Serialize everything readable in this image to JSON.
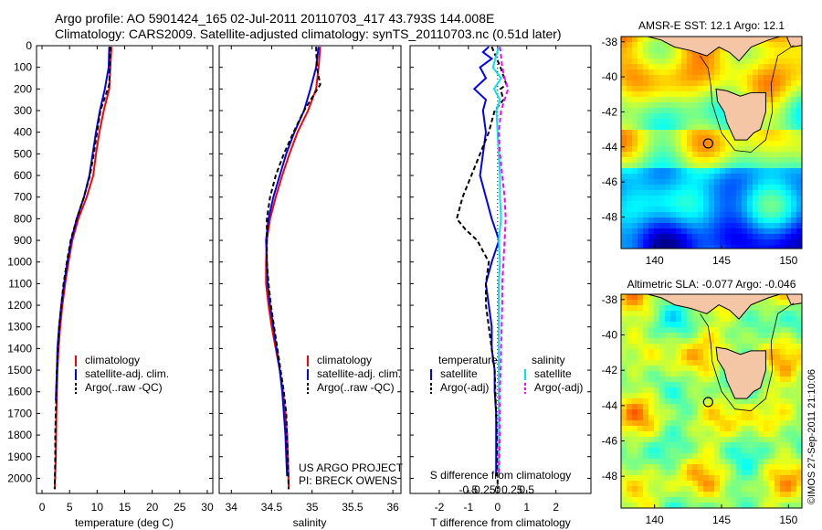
{
  "header": {
    "line1": "Argo profile: AO 5901424_165 02-Jul-2011 20110703_417 43.793S 144.008E",
    "line2": "Climatology: CARS2009. Satellite-adjusted climatology: synTS_20110703.nc (0.51d later)"
  },
  "colors": {
    "climatology": "#ff0000",
    "satellite": "#0000ff",
    "argo": "#000000",
    "salinity_satellite": "#00e5ee",
    "salinity_argo": "#ff00ff",
    "land": "#f5c6a6"
  },
  "credit": "©IMOS 27-Sep-2011 21:10:06",
  "chart_data": [
    {
      "id": "temperature",
      "type": "line",
      "xlabel": "temperature (deg C)",
      "ylabel": "",
      "xlim": [
        -1,
        31
      ],
      "ylim": [
        2070,
        0
      ],
      "xticks": [
        0,
        5,
        10,
        15,
        20,
        25,
        30
      ],
      "yticks": [
        0,
        100,
        200,
        300,
        400,
        500,
        600,
        700,
        800,
        900,
        1000,
        1100,
        1200,
        1300,
        1400,
        1500,
        1600,
        1700,
        1800,
        1900,
        2000
      ],
      "legend": [
        "climatology",
        "satellite-adj. clim.",
        "Argo(..raw -QC)"
      ],
      "series": [
        {
          "name": "climatology",
          "color": "#ff0000",
          "dash": "",
          "depth": [
            5,
            100,
            200,
            300,
            400,
            500,
            600,
            700,
            800,
            900,
            1000,
            1100,
            1200,
            1300,
            1400,
            1500,
            1700,
            1900,
            2050
          ],
          "values": [
            12.6,
            12.4,
            12.2,
            11.2,
            10.4,
            9.8,
            9.3,
            8.1,
            6.6,
            5.5,
            4.8,
            4.2,
            3.7,
            3.3,
            3.0,
            2.8,
            2.6,
            2.5,
            2.3
          ]
        },
        {
          "name": "satellite-adj. clim.",
          "color": "#0000ff",
          "dash": "",
          "depth": [
            5,
            100,
            200,
            300,
            400,
            500,
            600,
            700,
            800,
            900,
            1000,
            1100,
            1200,
            1300,
            1400,
            1500,
            1640
          ],
          "values": [
            12.2,
            12.1,
            11.4,
            10.5,
            9.8,
            9.2,
            8.6,
            7.6,
            6.3,
            5.3,
            4.6,
            4.0,
            3.5,
            3.1,
            2.8,
            2.7,
            2.5
          ]
        },
        {
          "name": "Argo(..raw -QC)",
          "color": "#000000",
          "dash": "5,3",
          "depth": [
            5,
            100,
            180,
            300,
            400,
            500,
            600,
            700,
            800,
            900,
            1000,
            1100,
            1200,
            1300,
            1400,
            1500,
            1600,
            1700,
            1800,
            1900,
            2050
          ],
          "values": [
            12.4,
            12.3,
            12.2,
            10.6,
            10.0,
            9.4,
            8.7,
            7.6,
            6.3,
            5.2,
            4.5,
            3.9,
            3.5,
            3.1,
            2.9,
            2.7,
            2.6,
            2.5,
            2.4,
            2.4,
            2.3
          ]
        }
      ]
    },
    {
      "id": "salinity",
      "type": "line",
      "xlabel": "salinity",
      "ylabel": "",
      "xlim": [
        33.85,
        36.1
      ],
      "ylim": [
        2070,
        0
      ],
      "xticks": [
        34,
        34.5,
        35,
        35.5,
        36
      ],
      "legend": [
        "climatology",
        "satellite-adj. clim.",
        "Argo(..raw -QC)"
      ],
      "annotation": [
        "US ARGO PROJECT",
        "PI: BRECK OWENS"
      ],
      "series": [
        {
          "name": "climatology",
          "color": "#ff0000",
          "dash": "",
          "depth": [
            5,
            100,
            200,
            300,
            400,
            500,
            600,
            700,
            800,
            900,
            1000,
            1100,
            1200,
            1300,
            1400,
            1500,
            1600,
            1700,
            1800,
            1900,
            2050
          ],
          "values": [
            35.1,
            35.08,
            35.05,
            34.95,
            34.82,
            34.72,
            34.63,
            34.55,
            34.48,
            34.44,
            34.43,
            34.43,
            34.46,
            34.5,
            34.55,
            34.6,
            34.64,
            34.67,
            34.69,
            34.7,
            34.71
          ]
        },
        {
          "name": "satellite-adj. clim.",
          "color": "#0000ff",
          "dash": "",
          "depth": [
            5,
            100,
            200,
            300,
            400,
            500,
            600,
            700,
            800,
            900,
            1000,
            1100,
            1200,
            1300,
            1400,
            1500,
            1600,
            1700,
            1800,
            1900,
            1990
          ],
          "values": [
            35.08,
            35.05,
            34.98,
            34.9,
            34.78,
            34.68,
            34.6,
            34.52,
            34.46,
            34.43,
            34.44,
            34.45,
            34.48,
            34.52,
            34.56,
            34.6,
            34.63,
            34.65,
            34.67,
            34.68,
            34.69
          ]
        },
        {
          "name": "Argo(..raw -QC)",
          "color": "#000000",
          "dash": "5,3",
          "depth": [
            5,
            100,
            180,
            300,
            400,
            500,
            600,
            700,
            800,
            900,
            1000,
            1100,
            1200,
            1300,
            1400,
            1500,
            1600,
            1700,
            1800,
            1900,
            2050
          ],
          "values": [
            35.05,
            35.06,
            35.1,
            34.9,
            34.77,
            34.65,
            34.55,
            34.48,
            34.44,
            34.44,
            34.44,
            34.46,
            34.49,
            34.53,
            34.57,
            34.61,
            34.65,
            34.68,
            34.69,
            34.7,
            34.71
          ]
        }
      ]
    },
    {
      "id": "difference",
      "type": "line",
      "xlabel": "T difference from climatology",
      "top_xlabel": "S difference from climatology",
      "xlim": [
        -3,
        3.2
      ],
      "ylim": [
        2070,
        0
      ],
      "xticks": [
        -2,
        -1,
        0,
        1,
        2
      ],
      "top_ticks": [
        "-0.5",
        "-0.25",
        "0",
        "0.25",
        "0.5"
      ],
      "legend": {
        "temperature_heading": "temperature",
        "salinity_heading": "salinity",
        "entries": [
          "satellite",
          "Argo(-adj)",
          "satellite",
          "Argo(-adj)"
        ]
      },
      "series": [
        {
          "name": "temperature satellite",
          "color": "#0000ff",
          "dash": "",
          "depth": [
            5,
            30,
            60,
            100,
            150,
            200,
            250,
            300,
            400,
            500,
            600,
            700,
            800,
            900,
            1000,
            1100,
            1200,
            1300,
            1400,
            1500,
            1600,
            1700,
            1800,
            1900,
            1990
          ],
          "values": [
            -0.3,
            -0.5,
            -0.2,
            -0.6,
            -0.4,
            -0.8,
            -0.4,
            -0.5,
            -0.4,
            -0.5,
            -0.6,
            -0.4,
            -0.2,
            0.05,
            -0.2,
            -0.4,
            -0.3,
            -0.2,
            -0.2,
            -0.1,
            -0.1,
            -0.05,
            -0.05,
            -0.05,
            -0.05
          ]
        },
        {
          "name": "temperature Argo(-adj)",
          "color": "#000000",
          "dash": "5,3",
          "depth": [
            5,
            100,
            180,
            200,
            250,
            300,
            400,
            500,
            600,
            700,
            800,
            850,
            900,
            1000,
            1100,
            1200,
            1300,
            1400,
            1500,
            1700,
            1900,
            2050
          ],
          "values": [
            -0.2,
            0.1,
            0.3,
            0.1,
            0.2,
            -0.1,
            -0.3,
            -0.6,
            -0.9,
            -1.2,
            -1.4,
            -1.1,
            -0.7,
            -0.3,
            -0.4,
            -0.4,
            -0.3,
            -0.2,
            -0.1,
            -0.05,
            0,
            0
          ]
        },
        {
          "name": "salinity satellite",
          "color": "#00e5ee",
          "dash": "",
          "depth": [
            5,
            100,
            150,
            200,
            250,
            300,
            400,
            500,
            600,
            700,
            800,
            900,
            1000,
            1100,
            1200,
            1400,
            1600,
            1800,
            1990
          ],
          "values": [
            0.01,
            -0.04,
            0.03,
            -0.03,
            0.02,
            -0.01,
            0.0,
            0.01,
            0.02,
            0.02,
            0.03,
            0.01,
            0.02,
            0.01,
            0.01,
            0.01,
            0.01,
            0.01,
            0.01
          ]
        },
        {
          "name": "salinity Argo(-adj)",
          "color": "#ff00ff",
          "dash": "5,3",
          "depth": [
            5,
            50,
            100,
            150,
            200,
            250,
            300,
            400,
            500,
            600,
            700,
            800,
            900,
            1000,
            1100,
            1200,
            1400,
            1600,
            1800,
            1990
          ],
          "values": [
            0.02,
            0.03,
            0.04,
            0.06,
            0.09,
            0.06,
            0.03,
            0.01,
            0.02,
            0.04,
            0.06,
            0.07,
            0.06,
            0.05,
            0.04,
            0.04,
            0.03,
            0.02,
            0.02,
            0.01
          ]
        }
      ]
    },
    {
      "id": "sst_map",
      "type": "heatmap",
      "title": "AMSR-E SST: 12.1  Argo: 12.1",
      "xlim": [
        137.5,
        151
      ],
      "ylim": [
        -49.8,
        -37.7
      ],
      "xticks": [
        140,
        145,
        150
      ],
      "yticks": [
        -38,
        -40,
        -42,
        -44,
        -46,
        -48
      ],
      "argo_position": [
        144.0,
        -43.8
      ]
    },
    {
      "id": "sla_map",
      "type": "heatmap",
      "title": "Altimetric SLA: -0.077  Argo: -0.046",
      "xlim": [
        137.5,
        151
      ],
      "ylim": [
        -49.8,
        -37.7
      ],
      "xticks": [
        140,
        145,
        150
      ],
      "yticks": [
        -38,
        -40,
        -42,
        -44,
        -46,
        -48
      ],
      "argo_position": [
        144.0,
        -43.8
      ]
    }
  ]
}
